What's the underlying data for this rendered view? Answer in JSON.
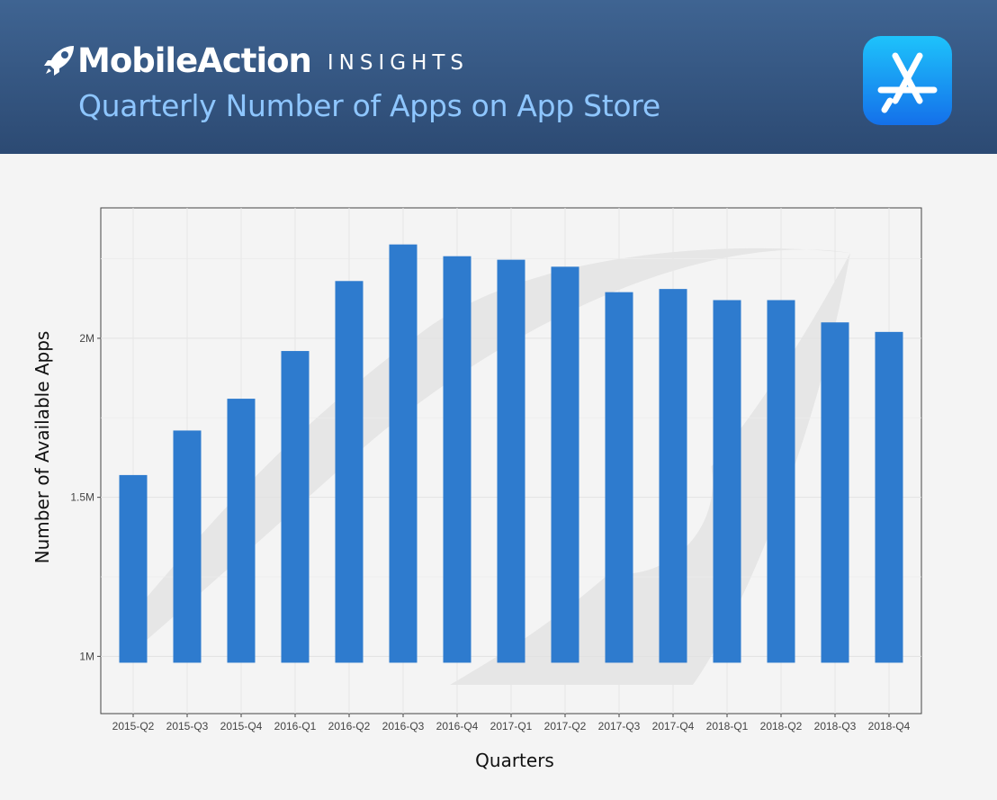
{
  "header": {
    "brand_name": "MobileAction",
    "brand_sub": "INSIGHTS",
    "subtitle": "Quarterly Number of Apps on App Store"
  },
  "icons": {
    "logo": "rocket-icon",
    "app": "app-store-icon"
  },
  "colors": {
    "header_top": "#3f6492",
    "header_bottom": "#2c4a73",
    "subtitle": "#8ec6ff",
    "bar": "#2e7bce",
    "appstore_top": "#1ec3fb",
    "appstore_bottom": "#1470ea"
  },
  "chart_data": {
    "type": "bar",
    "title": "Quarterly Number of Apps on App Store",
    "xlabel": "Quarters",
    "ylabel": "Number of Available Apps",
    "categories": [
      "2015-Q2",
      "2015-Q3",
      "2015-Q4",
      "2016-Q1",
      "2016-Q2",
      "2016-Q3",
      "2016-Q4",
      "2017-Q1",
      "2017-Q2",
      "2017-Q3",
      "2017-Q4",
      "2018-Q1",
      "2018-Q2",
      "2018-Q3",
      "2018-Q4"
    ],
    "values": [
      1570000,
      1710000,
      1810000,
      1960000,
      2180000,
      2295000,
      2258000,
      2247000,
      2225000,
      2145000,
      2155000,
      2120000,
      2120000,
      2050000,
      2020000
    ],
    "yticks": [
      1000000,
      1500000,
      2000000
    ],
    "ytick_labels": [
      "1M",
      "1.5M",
      "2M"
    ],
    "ylim": [
      820000,
      2410000
    ],
    "bar_base": 980000,
    "grid": true
  }
}
